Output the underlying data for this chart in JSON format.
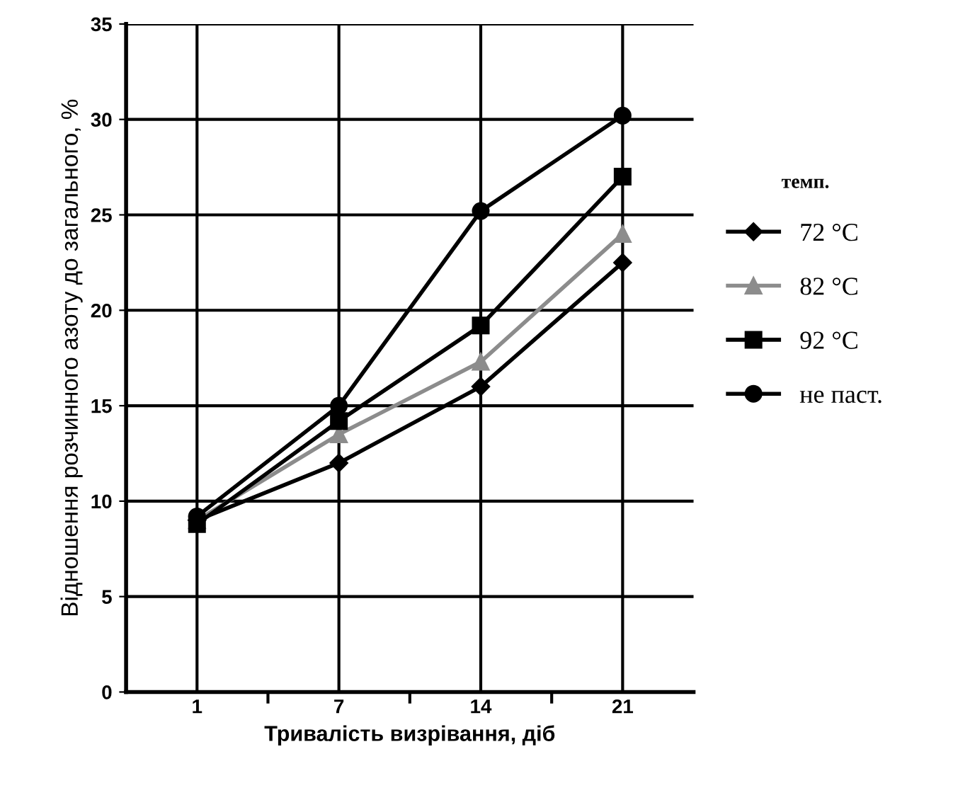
{
  "chart_data": {
    "type": "line",
    "xlabel": "Тривалість визрівання, діб",
    "ylabel": "Відношення розчинного азоту до загального, %",
    "legend_title": "темп.",
    "categories": [
      "1",
      "7",
      "14",
      "21"
    ],
    "series": [
      {
        "name": "72 °C",
        "color": "#000000",
        "marker": "diamond",
        "values": [
          9,
          12,
          16,
          22.5
        ]
      },
      {
        "name": "82 °C",
        "color": "#8c8c8c",
        "marker": "triangle",
        "values": [
          9,
          13.5,
          17.3,
          24
        ]
      },
      {
        "name": "92 °C",
        "color": "#000000",
        "marker": "square",
        "values": [
          8.8,
          14.2,
          19.2,
          27
        ]
      },
      {
        "name": "не паст.",
        "color": "#000000",
        "marker": "circle",
        "values": [
          9.2,
          15,
          25.2,
          30.2
        ]
      }
    ],
    "ylim": [
      0,
      35
    ],
    "yticks": [
      0,
      5,
      10,
      15,
      20,
      25,
      30,
      35
    ],
    "grid": true,
    "legend": "right",
    "line_style": "solid"
  }
}
